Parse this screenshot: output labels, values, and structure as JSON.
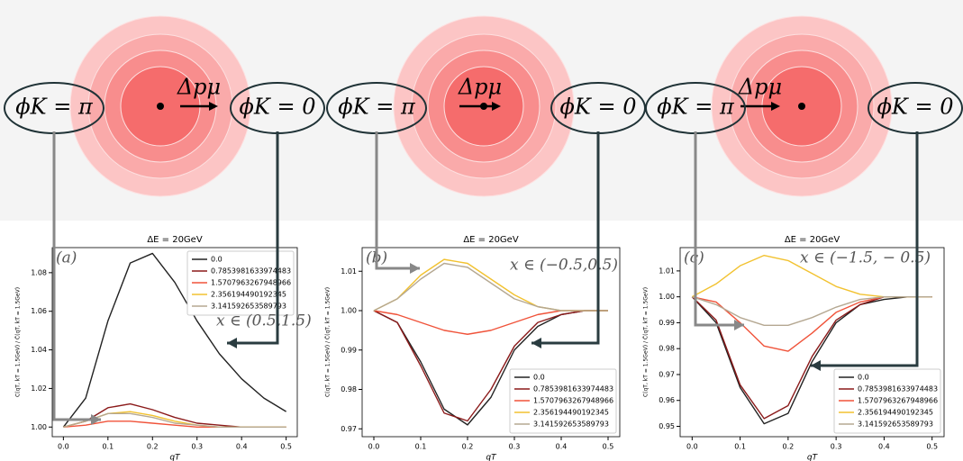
{
  "chart_data": [
    {
      "type": "line",
      "title": "ΔE = 20GeV",
      "x_label": "qT",
      "y_label": "C(qT, kT = 1.5GeV) / C̄(qT, kT = 1.5GeV)",
      "annotations": [
        "(a)",
        "x ∈ (0.5,1.5)"
      ],
      "legend": "upper right",
      "x": [
        0,
        0.05,
        0.1,
        0.15,
        0.2,
        0.25,
        0.3,
        0.35,
        0.4,
        0.45,
        0.5
      ],
      "xlim": [
        -0.025,
        0.525
      ],
      "xticks": [
        {
          "value": 0,
          "label": "0.0"
        },
        0.1,
        0.2,
        0.3,
        0.4,
        0.5
      ],
      "ylim": [
        0.995,
        1.093
      ],
      "yticks": [
        {
          "value": 1,
          "label": "1.00"
        },
        1.02,
        1.04,
        1.06,
        1.08
      ],
      "series": [
        {
          "name": "0.0",
          "color": "#222222",
          "values": [
            1.0,
            1.015,
            1.055,
            1.085,
            1.09,
            1.075,
            1.055,
            1.038,
            1.025,
            1.015,
            1.008
          ]
        },
        {
          "name": "0.7853981633974483",
          "color": "#8b1a1a",
          "values": [
            1.0,
            1.003,
            1.01,
            1.012,
            1.009,
            1.005,
            1.002,
            1.001,
            1.0,
            1.0,
            1.0
          ]
        },
        {
          "name": "1.5707963267948966",
          "color": "#f0533a",
          "values": [
            1.0,
            1.001,
            1.003,
            1.003,
            1.002,
            1.001,
            1.0,
            1.0,
            1.0,
            1.0,
            1.0
          ]
        },
        {
          "name": "2.356194490192345",
          "color": "#f2c230",
          "values": [
            1.0,
            1.003,
            1.007,
            1.008,
            1.006,
            1.003,
            1.001,
            1.0,
            1.0,
            1.0,
            1.0
          ]
        },
        {
          "name": "3.141592653589793",
          "color": "#b5a892",
          "values": [
            1.0,
            1.003,
            1.007,
            1.007,
            1.005,
            1.002,
            1.001,
            1.0,
            1.0,
            1.0,
            1.0
          ]
        }
      ]
    },
    {
      "type": "line",
      "title": "ΔE = 20GeV",
      "x_label": "qT",
      "y_label": "C(qT, kT = 1.5GeV) / C̄(qT, kT = 1.5GeV)",
      "annotations": [
        "(b)",
        "x ∈ (−0.5,0.5)"
      ],
      "legend": "lower right",
      "x": [
        0,
        0.05,
        0.1,
        0.15,
        0.2,
        0.25,
        0.3,
        0.35,
        0.4,
        0.45,
        0.5
      ],
      "xlim": [
        -0.025,
        0.525
      ],
      "xticks": [
        {
          "value": 0,
          "label": "0.0"
        },
        0.1,
        0.2,
        0.3,
        0.4,
        0.5
      ],
      "ylim": [
        0.968,
        1.016
      ],
      "yticks": [
        0.97,
        0.98,
        0.99,
        {
          "value": 1,
          "label": "1.00"
        },
        1.01
      ],
      "series": [
        {
          "name": "0.0",
          "color": "#222222",
          "values": [
            1.0,
            0.997,
            0.987,
            0.975,
            0.971,
            0.978,
            0.99,
            0.996,
            0.999,
            1.0,
            1.0
          ]
        },
        {
          "name": "0.7853981633974483",
          "color": "#8b1a1a",
          "values": [
            1.0,
            0.997,
            0.986,
            0.974,
            0.972,
            0.98,
            0.991,
            0.997,
            0.999,
            1.0,
            1.0
          ]
        },
        {
          "name": "1.5707963267948966",
          "color": "#f0533a",
          "values": [
            1.0,
            0.999,
            0.997,
            0.995,
            0.994,
            0.995,
            0.997,
            0.999,
            1.0,
            1.0,
            1.0
          ]
        },
        {
          "name": "2.356194490192345",
          "color": "#f2c230",
          "values": [
            1.0,
            1.003,
            1.009,
            1.013,
            1.012,
            1.008,
            1.004,
            1.001,
            1.0,
            1.0,
            1.0
          ]
        },
        {
          "name": "3.141592653589793",
          "color": "#b5a892",
          "values": [
            1.0,
            1.003,
            1.008,
            1.012,
            1.011,
            1.007,
            1.003,
            1.001,
            1.0,
            1.0,
            1.0
          ]
        }
      ]
    },
    {
      "type": "line",
      "title": "ΔE = 20GeV",
      "x_label": "qT",
      "y_label": "C(qT, kT = 1.5GeV) / C̄(qT, kT = 1.5GeV)",
      "annotations": [
        "(c)",
        "x ∈ (−1.5, − 0.5)"
      ],
      "legend": "lower right",
      "x": [
        0,
        0.05,
        0.1,
        0.15,
        0.2,
        0.25,
        0.3,
        0.35,
        0.4,
        0.45,
        0.5
      ],
      "xlim": [
        -0.025,
        0.525
      ],
      "xticks": [
        {
          "value": 0,
          "label": "0.0"
        },
        0.1,
        0.2,
        0.3,
        0.4,
        0.5
      ],
      "ylim": [
        0.946,
        1.019
      ],
      "yticks": [
        0.95,
        0.96,
        0.97,
        0.98,
        0.99,
        {
          "value": 1,
          "label": "1.00"
        },
        1.01
      ],
      "series": [
        {
          "name": "0.0",
          "color": "#222222",
          "values": [
            1.0,
            0.99,
            0.965,
            0.951,
            0.955,
            0.975,
            0.99,
            0.997,
            0.999,
            1.0,
            1.0
          ]
        },
        {
          "name": "0.7853981633974483",
          "color": "#8b1a1a",
          "values": [
            1.0,
            0.991,
            0.966,
            0.953,
            0.958,
            0.977,
            0.991,
            0.997,
            1.0,
            1.0,
            1.0
          ]
        },
        {
          "name": "1.5707963267948966",
          "color": "#f0533a",
          "values": [
            1.0,
            0.998,
            0.99,
            0.981,
            0.979,
            0.986,
            0.994,
            0.998,
            1.0,
            1.0,
            1.0
          ]
        },
        {
          "name": "2.356194490192345",
          "color": "#f2c230",
          "values": [
            1.0,
            1.005,
            1.012,
            1.016,
            1.014,
            1.009,
            1.004,
            1.001,
            1.0,
            1.0,
            1.0
          ]
        },
        {
          "name": "3.141592653589793",
          "color": "#b5a892",
          "values": [
            1.0,
            0.997,
            0.992,
            0.989,
            0.989,
            0.992,
            0.996,
            0.999,
            1.0,
            1.0,
            1.0
          ]
        }
      ]
    }
  ],
  "diagrams": [
    {
      "left_label": "ϕK = π",
      "momentum_label": "Δpμ",
      "right_label": "ϕK = 0"
    },
    {
      "left_label": "ϕK = π",
      "momentum_label": "Δpμ",
      "right_label": "ϕK = 0"
    },
    {
      "left_label": "ϕK = π",
      "momentum_label": "Δpμ",
      "right_label": "ϕK = 0"
    }
  ]
}
